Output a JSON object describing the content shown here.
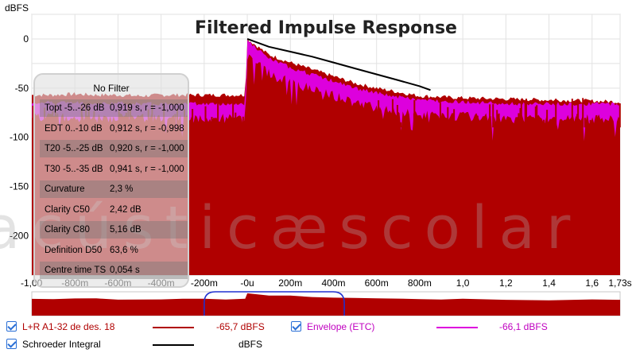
{
  "chart_data": {
    "type": "area",
    "title": "Filtered Impulse Response",
    "ylabel": "dBFS",
    "ylim": [
      -240,
      25
    ],
    "xlim": [
      -1.0,
      1.73
    ],
    "y_ticks": [
      0,
      -50,
      -100,
      -150,
      -200
    ],
    "y_tick_labels": [
      "0",
      "-50",
      "-100",
      "-150",
      "-200"
    ],
    "x_ticks": [
      -1.0,
      -0.8,
      -0.6,
      -0.4,
      -0.2,
      0,
      0.2,
      0.4,
      0.6,
      0.8,
      1.0,
      1.2,
      1.4,
      1.6,
      1.73
    ],
    "x_tick_labels": [
      "-1,00",
      "-800m",
      "-600m",
      "-400m",
      "-200m",
      "-0u",
      "200m",
      "400m",
      "600m",
      "800m",
      "1,0",
      "1,2",
      "1,4",
      "1,6",
      "1,73s"
    ],
    "grid": true,
    "series": [
      {
        "name": "L+R A1-32 de des. 18",
        "color": "#b00000",
        "x": [
          -1.0,
          -0.9,
          -0.8,
          -0.7,
          -0.6,
          -0.5,
          -0.4,
          -0.3,
          -0.2,
          -0.1,
          -0.01,
          0,
          0.1,
          0.2,
          0.3,
          0.4,
          0.5,
          0.6,
          0.7,
          0.8,
          0.9,
          1.0,
          1.2,
          1.4,
          1.6,
          1.73
        ],
        "y": [
          -57,
          -57,
          -56,
          -57,
          -57,
          -58,
          -57,
          -57,
          -57,
          -57,
          -57,
          0,
          -16,
          -24,
          -31,
          -38,
          -45,
          -50,
          -54,
          -58,
          -59,
          -60,
          -61,
          -62,
          -63,
          -64
        ]
      },
      {
        "name": "Envelope (ETC)",
        "color": "#dd00dd",
        "x": [
          -1.0,
          -0.9,
          -0.8,
          -0.7,
          -0.6,
          -0.5,
          -0.4,
          -0.3,
          -0.2,
          -0.1,
          -0.01,
          0,
          0.1,
          0.2,
          0.3,
          0.4,
          0.5,
          0.6,
          0.7,
          0.8,
          0.9,
          1.0,
          1.2,
          1.4,
          1.6,
          1.73
        ],
        "y": [
          -65,
          -64,
          -65,
          -66,
          -65,
          -66,
          -66,
          -65,
          -66,
          -66,
          -66,
          -2,
          -20,
          -29,
          -36,
          -43,
          -50,
          -55,
          -59,
          -62,
          -63,
          -64,
          -66,
          -66,
          -66,
          -66
        ]
      },
      {
        "name": "Schroeder Integral",
        "color": "#000000",
        "x": [
          0,
          0.1,
          0.2,
          0.3,
          0.4,
          0.5,
          0.6,
          0.7,
          0.8,
          0.85
        ],
        "y": [
          0,
          -8,
          -13,
          -18,
          -24,
          -30,
          -36,
          -42,
          -48,
          -52
        ]
      }
    ]
  },
  "params": {
    "header": "No Filter",
    "rows": [
      {
        "name": "Topt -5..-26 dB",
        "value": "0,919 s,  r = -1,000"
      },
      {
        "name": "EDT  0..-10 dB",
        "value": "0,912 s,  r = -0,998"
      },
      {
        "name": "T20 -5..-25 dB",
        "value": "0,920 s,  r = -1,000"
      },
      {
        "name": "T30 -5..-35 dB",
        "value": "0,941 s,  r = -1,000"
      },
      {
        "name": "Curvature",
        "value": "2,3 %"
      },
      {
        "name": "Clarity C50",
        "value": "2,42 dB"
      },
      {
        "name": "Clarity C80",
        "value": "5,16 dB"
      },
      {
        "name": "Definition D50",
        "value": "63,6 %"
      },
      {
        "name": "Centre time TS",
        "value": "0,054 s"
      }
    ]
  },
  "watermark": "acústicæscolar",
  "legend": [
    {
      "label": "L+R A1-32 de des. 18",
      "value": "-65,7 dBFS",
      "checked": true,
      "color": "#b00000"
    },
    {
      "label": "Envelope (ETC)",
      "value": "-66,1 dBFS",
      "checked": true,
      "color": "#dd00dd"
    },
    {
      "label": "Schroeder Integral",
      "value": "dBFS",
      "checked": true,
      "color": "#000000"
    }
  ],
  "overview": {
    "view_start": -0.2,
    "view_end": 0.45
  }
}
